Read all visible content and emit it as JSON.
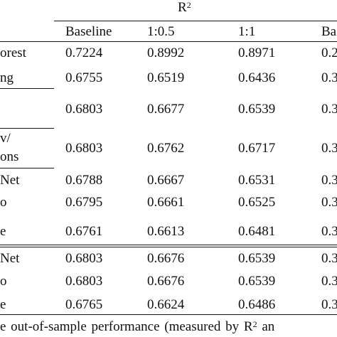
{
  "table": {
    "group_header": {
      "symbol": "R",
      "superscript": "2"
    },
    "columns": [
      "Baseline",
      "1:0.5",
      "1:1",
      "Ba"
    ],
    "rows": [
      {
        "label": [
          "orest"
        ],
        "values": [
          "0.7224",
          "0.8992",
          "0.8971",
          "0.2"
        ]
      },
      {
        "label": [
          "ng"
        ],
        "values": [
          "0.6755",
          "0.6519",
          "0.6436",
          "0.3"
        ]
      },
      {
        "label": [
          ""
        ],
        "values": [
          "0.6803",
          "0.6677",
          "0.6539",
          "0.3"
        ]
      },
      {
        "label": [
          "v/",
          "ons"
        ],
        "values": [
          "0.6803",
          "0.6762",
          "0.6717",
          "0.3"
        ]
      },
      {
        "label": [
          "Net"
        ],
        "values": [
          "0.6788",
          "0.6667",
          "0.6531",
          "0.3"
        ]
      },
      {
        "label": [
          "o"
        ],
        "values": [
          "0.6795",
          "0.6661",
          "0.6525",
          "0.3"
        ]
      },
      {
        "label": [
          "e"
        ],
        "values": [
          "0.6761",
          "0.6613",
          "0.6481",
          "0.3"
        ]
      },
      {
        "label": [
          "Net"
        ],
        "values": [
          "0.6803",
          "0.6676",
          "0.6539",
          "0.3"
        ]
      },
      {
        "label": [
          "o"
        ],
        "values": [
          "0.6803",
          "0.6676",
          "0.6539",
          "0.3"
        ]
      },
      {
        "label": [
          "e"
        ],
        "values": [
          "0.6765",
          "0.6624",
          "0.6486",
          "0.3"
        ]
      }
    ]
  },
  "caption": {
    "before": "e out-of-sample performance (measured by R",
    "sup": "2",
    "after": " an"
  }
}
